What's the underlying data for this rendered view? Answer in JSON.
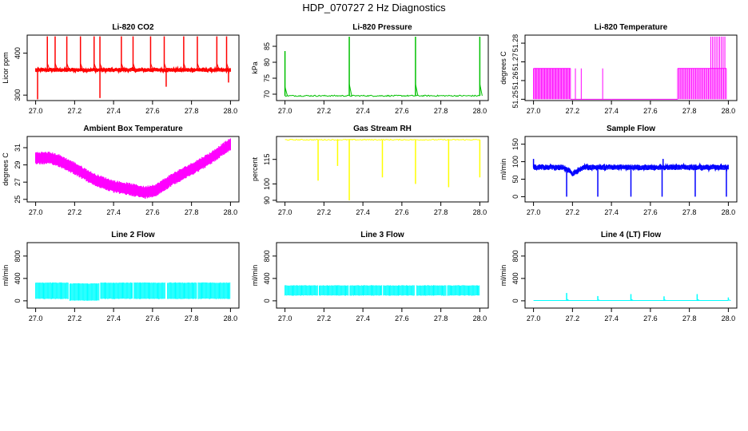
{
  "figure": {
    "title": "HDP_070727  2 Hz Diagnostics"
  },
  "colors": {
    "red": "#ff0000",
    "green": "#00c000",
    "magenta": "#ff00ff",
    "yellow": "#ffff00",
    "blue": "#0000ff",
    "cyan": "#00ffff",
    "axis": "#000000"
  },
  "chart_data": [
    {
      "type": "line",
      "title": "Li-820 CO2",
      "xlabel": "",
      "ylabel": "Licor ppm",
      "x_ticks": [
        27.0,
        27.2,
        27.4,
        27.6,
        27.8,
        28.0
      ],
      "x_tick_labels": [
        "27.0",
        "27.2",
        "27.4",
        "27.6",
        "27.8",
        "28.0"
      ],
      "y_ticks": [
        300,
        400
      ],
      "y_tick_labels": [
        "300",
        "400"
      ],
      "xlim": [
        27.0,
        28.0
      ],
      "ylim": [
        287,
        443
      ],
      "color": "red",
      "series": [
        {
          "name": "CO2",
          "baseline": 360,
          "noise": 5,
          "spikes": [
            {
              "x": 27.06,
              "y": 440
            },
            {
              "x": 27.1,
              "y": 440
            },
            {
              "x": 27.16,
              "y": 440
            },
            {
              "x": 27.23,
              "y": 440
            },
            {
              "x": 27.3,
              "y": 440
            },
            {
              "x": 27.33,
              "y": 440
            },
            {
              "x": 27.44,
              "y": 440
            },
            {
              "x": 27.5,
              "y": 440
            },
            {
              "x": 27.59,
              "y": 440
            },
            {
              "x": 27.66,
              "y": 440
            },
            {
              "x": 27.76,
              "y": 440
            },
            {
              "x": 27.83,
              "y": 440
            },
            {
              "x": 27.93,
              "y": 440
            },
            {
              "x": 27.98,
              "y": 440
            },
            {
              "x": 27.01,
              "y": 290
            },
            {
              "x": 27.33,
              "y": 293
            },
            {
              "x": 27.67,
              "y": 320
            },
            {
              "x": 27.99,
              "y": 330
            }
          ]
        }
      ]
    },
    {
      "type": "line",
      "title": "Li-820 Pressure",
      "xlabel": "",
      "ylabel": "kPa",
      "x_ticks": [
        27.0,
        27.2,
        27.4,
        27.6,
        27.8,
        28.0
      ],
      "x_tick_labels": [
        "27.0",
        "27.2",
        "27.4",
        "27.6",
        "27.8",
        "28.0"
      ],
      "y_ticks": [
        70,
        75,
        80,
        85
      ],
      "y_tick_labels": [
        "70",
        "75",
        "80",
        "85"
      ],
      "xlim": [
        27.0,
        28.0
      ],
      "ylim": [
        68,
        88.5
      ],
      "color": "green",
      "series": [
        {
          "name": "Pressure",
          "baseline": 69.5,
          "noise": 0.2,
          "spikes": [
            {
              "x": 27.0,
              "y": 83.5
            },
            {
              "x": 27.33,
              "y": 88
            },
            {
              "x": 27.67,
              "y": 88
            },
            {
              "x": 28.0,
              "y": 88
            }
          ]
        }
      ]
    },
    {
      "type": "line",
      "title": "Li-820 Temperature",
      "xlabel": "",
      "ylabel": "degrees C",
      "x_ticks": [
        27.0,
        27.2,
        27.4,
        27.6,
        27.8,
        28.0
      ],
      "x_tick_labels": [
        "27.0",
        "27.2",
        "27.4",
        "27.6",
        "27.8",
        "28.0"
      ],
      "y_ticks": [
        51.25,
        51.26,
        51.27,
        51.28
      ],
      "y_tick_labels": [
        "51.25",
        "51.26",
        "51.27",
        "51.28"
      ],
      "xlim": [
        27.0,
        28.0
      ],
      "ylim": [
        51.2493,
        51.2843
      ],
      "color": "magenta",
      "series": [
        {
          "name": "Temperature",
          "low": 51.25,
          "high": 51.2665,
          "top": 51.2835,
          "toggle_range": [
            27.0,
            27.19
          ],
          "extra_toggles": [
            27.215,
            27.245,
            27.355
          ],
          "toggle_range_2": [
            27.74,
            27.99
          ],
          "top_toggles": [
            27.91,
            27.99
          ]
        }
      ]
    },
    {
      "type": "area",
      "title": "Ambient Box Temperature",
      "xlabel": "",
      "ylabel": "degrees C",
      "x_ticks": [
        27.0,
        27.2,
        27.4,
        27.6,
        27.8,
        28.0
      ],
      "x_tick_labels": [
        "27.0",
        "27.2",
        "27.4",
        "27.6",
        "27.8",
        "28.0"
      ],
      "y_ticks": [
        25,
        27,
        29,
        31
      ],
      "y_tick_labels": [
        "25",
        "27",
        "29",
        "31"
      ],
      "xlim": [
        27.0,
        28.0
      ],
      "ylim": [
        24.7,
        32.3
      ],
      "color": "magenta",
      "series": [
        {
          "name": "Box temperature",
          "x": [
            27.0,
            27.07,
            27.12,
            27.2,
            27.3,
            27.4,
            27.5,
            27.56,
            27.62,
            27.7,
            27.8,
            27.9,
            27.96,
            28.0
          ],
          "y": [
            29.8,
            29.8,
            29.5,
            28.6,
            27.3,
            26.5,
            26.1,
            25.8,
            26.1,
            27.3,
            28.5,
            29.8,
            30.8,
            31.4
          ],
          "band": 0.75
        }
      ]
    },
    {
      "type": "line",
      "title": "Gas Stream RH",
      "xlabel": "",
      "ylabel": "percent",
      "x_ticks": [
        27.0,
        27.2,
        27.4,
        27.6,
        27.8,
        28.0
      ],
      "x_tick_labels": [
        "27.0",
        "27.2",
        "27.4",
        "27.6",
        "27.8",
        "28.0"
      ],
      "y_ticks": [
        90,
        100,
        115
      ],
      "y_tick_labels": [
        "90",
        "100",
        "115"
      ],
      "xlim": [
        27.0,
        28.0
      ],
      "ylim": [
        89,
        129
      ],
      "color": "yellow",
      "series": [
        {
          "name": "RH",
          "baseline": 127,
          "noise": 0.3,
          "spikes": [
            {
              "x": 27.17,
              "y": 102
            },
            {
              "x": 27.27,
              "y": 111
            },
            {
              "x": 27.33,
              "y": 90
            },
            {
              "x": 27.5,
              "y": 104
            },
            {
              "x": 27.67,
              "y": 100
            },
            {
              "x": 27.84,
              "y": 98
            },
            {
              "x": 28.0,
              "y": 104
            }
          ]
        }
      ]
    },
    {
      "type": "line",
      "title": "Sample Flow",
      "xlabel": "",
      "ylabel": "ml/min",
      "x_ticks": [
        27.0,
        27.2,
        27.4,
        27.6,
        27.8,
        28.0
      ],
      "x_tick_labels": [
        "27.0",
        "27.2",
        "27.4",
        "27.6",
        "27.8",
        "28.0"
      ],
      "y_ticks": [
        0,
        50,
        100,
        150
      ],
      "y_tick_labels": [
        "0",
        "50",
        "100",
        "150"
      ],
      "xlim": [
        27.0,
        28.0
      ],
      "ylim": [
        -15,
        172
      ],
      "color": "blue",
      "series": [
        {
          "name": "Sample flow",
          "baseline": 84,
          "noise": 8,
          "dip_region": {
            "x": [
              27.15,
              27.26
            ],
            "depth": 22
          },
          "spikes": [
            {
              "x": 27.0,
              "y": 108
            },
            {
              "x": 27.17,
              "y": 0
            },
            {
              "x": 27.33,
              "y": 0
            },
            {
              "x": 27.5,
              "y": 0
            },
            {
              "x": 27.66,
              "y": 0
            },
            {
              "x": 27.665,
              "y": 108
            },
            {
              "x": 27.83,
              "y": 0
            },
            {
              "x": 27.99,
              "y": 0
            }
          ]
        }
      ]
    },
    {
      "type": "area",
      "title": "Line 2 Flow",
      "xlabel": "",
      "ylabel": "ml/min",
      "x_ticks": [
        27.0,
        27.2,
        27.4,
        27.6,
        27.8,
        28.0
      ],
      "x_tick_labels": [
        "27.0",
        "27.2",
        "27.4",
        "27.6",
        "27.8",
        "28.0"
      ],
      "y_ticks": [
        0,
        400,
        800
      ],
      "y_tick_labels": [
        "0",
        "400",
        "800"
      ],
      "xlim": [
        27.0,
        28.0
      ],
      "ylim": [
        -130,
        1040
      ],
      "color": "cyan",
      "series": [
        {
          "name": "Line 2",
          "low": 40,
          "high": 320,
          "range": [
            27.0,
            28.0
          ],
          "gaps": [
            27.17,
            27.33,
            27.5,
            27.67,
            27.83
          ],
          "sag_region": {
            "x": [
              27.17,
              27.33
            ],
            "shift": -30
          }
        }
      ]
    },
    {
      "type": "area",
      "title": "Line 3 Flow",
      "xlabel": "",
      "ylabel": "ml/min",
      "x_ticks": [
        27.0,
        27.2,
        27.4,
        27.6,
        27.8,
        28.0
      ],
      "x_tick_labels": [
        "27.0",
        "27.2",
        "27.4",
        "27.6",
        "27.8",
        "28.0"
      ],
      "y_ticks": [
        0,
        400,
        800
      ],
      "y_tick_labels": [
        "0",
        "400",
        "800"
      ],
      "xlim": [
        27.0,
        28.0
      ],
      "ylim": [
        -130,
        1040
      ],
      "color": "cyan",
      "series": [
        {
          "name": "Line 3",
          "low": 100,
          "high": 270,
          "range": [
            27.0,
            28.0
          ],
          "gaps": [
            27.17,
            27.33,
            27.5,
            27.67,
            27.83
          ]
        }
      ]
    },
    {
      "type": "line",
      "title": "Line 4 (LT) Flow",
      "xlabel": "",
      "ylabel": "ml/min",
      "x_ticks": [
        27.0,
        27.2,
        27.4,
        27.6,
        27.8,
        28.0
      ],
      "x_tick_labels": [
        "27.0",
        "27.2",
        "27.4",
        "27.6",
        "27.8",
        "28.0"
      ],
      "y_ticks": [
        0,
        400,
        800
      ],
      "y_tick_labels": [
        "0",
        "400",
        "800"
      ],
      "xlim": [
        27.0,
        28.0
      ],
      "ylim": [
        -130,
        1040
      ],
      "color": "cyan",
      "series": [
        {
          "name": "Line 4",
          "baseline": 5,
          "noise": 0,
          "spikes": [
            {
              "x": 27.17,
              "y": 140
            },
            {
              "x": 27.33,
              "y": 85
            },
            {
              "x": 27.5,
              "y": 120
            },
            {
              "x": 27.67,
              "y": 80
            },
            {
              "x": 27.84,
              "y": 120
            },
            {
              "x": 28.0,
              "y": 60
            }
          ]
        }
      ]
    }
  ]
}
